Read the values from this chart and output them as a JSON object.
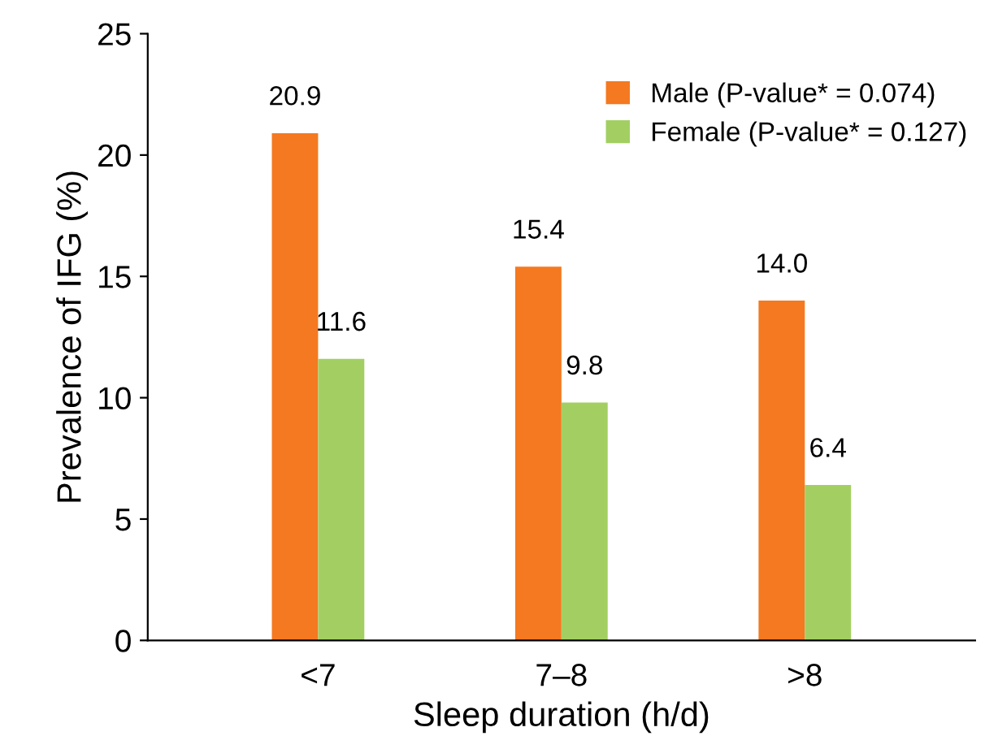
{
  "chart_data": {
    "type": "bar",
    "xlabel": "Sleep duration (h/d)",
    "ylabel": "Prevalence of IFG (%)",
    "categories": [
      "<7",
      "7–8",
      ">8"
    ],
    "series": [
      {
        "name": "Male (P-value* = 0.074)",
        "color": "#f47920",
        "values": [
          20.9,
          15.4,
          14.0
        ],
        "value_labels": [
          "20.9",
          "15.4",
          "14.0"
        ]
      },
      {
        "name": "Female (P-value* = 0.127)",
        "color": "#a3cf62",
        "values": [
          11.6,
          9.8,
          6.4
        ],
        "value_labels": [
          "11.6",
          "9.8",
          "6.4"
        ]
      }
    ],
    "ylim": [
      0,
      25
    ],
    "yticks": [
      0,
      5,
      10,
      15,
      20,
      25
    ],
    "grid": false,
    "legend": "top right"
  }
}
